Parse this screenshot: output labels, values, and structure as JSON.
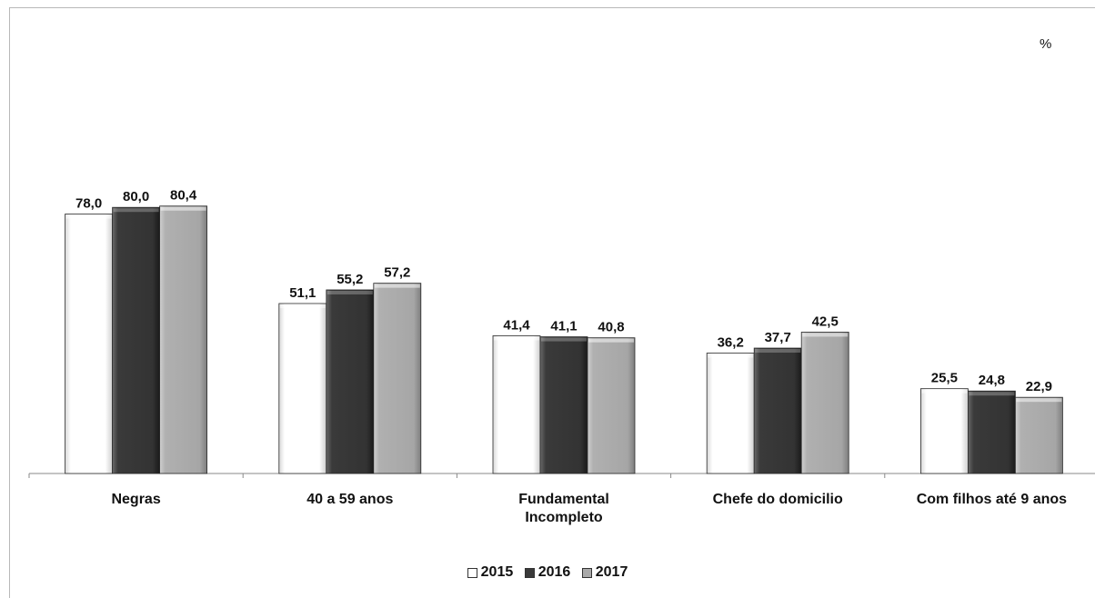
{
  "chart_data": {
    "type": "bar",
    "title": "",
    "unit_label": "%",
    "xlabel": "",
    "ylabel": "",
    "ylim": [
      0,
      100
    ],
    "grid": false,
    "legend_position": "bottom",
    "categories": [
      "Negras",
      "40 a 59 anos",
      "Fundamental Incompleto",
      "Chefe do domicilio",
      "Com filhos  até 9 anos"
    ],
    "category_lines": [
      [
        "Negras"
      ],
      [
        "40 a 59 anos"
      ],
      [
        "Fundamental",
        "Incompleto"
      ],
      [
        "Chefe do domicilio"
      ],
      [
        "Com filhos  até 9 anos"
      ]
    ],
    "series": [
      {
        "name": "2015",
        "values": [
          78.0,
          51.1,
          41.4,
          36.2,
          25.5
        ],
        "labels": [
          "78,0",
          "51,1",
          "41,4",
          "36,2",
          "25,5"
        ],
        "color": "#ffffff"
      },
      {
        "name": "2016",
        "values": [
          80.0,
          55.2,
          41.1,
          37.7,
          24.8
        ],
        "labels": [
          "80,0",
          "55,2",
          "41,1",
          "37,7",
          "24,8"
        ],
        "color": "#3a3a3a"
      },
      {
        "name": "2017",
        "values": [
          80.4,
          57.2,
          40.8,
          42.5,
          22.9
        ],
        "labels": [
          "80,4",
          "57,2",
          "40,8",
          "42,5",
          "22,9"
        ],
        "color": "#a9a9a9"
      }
    ]
  }
}
